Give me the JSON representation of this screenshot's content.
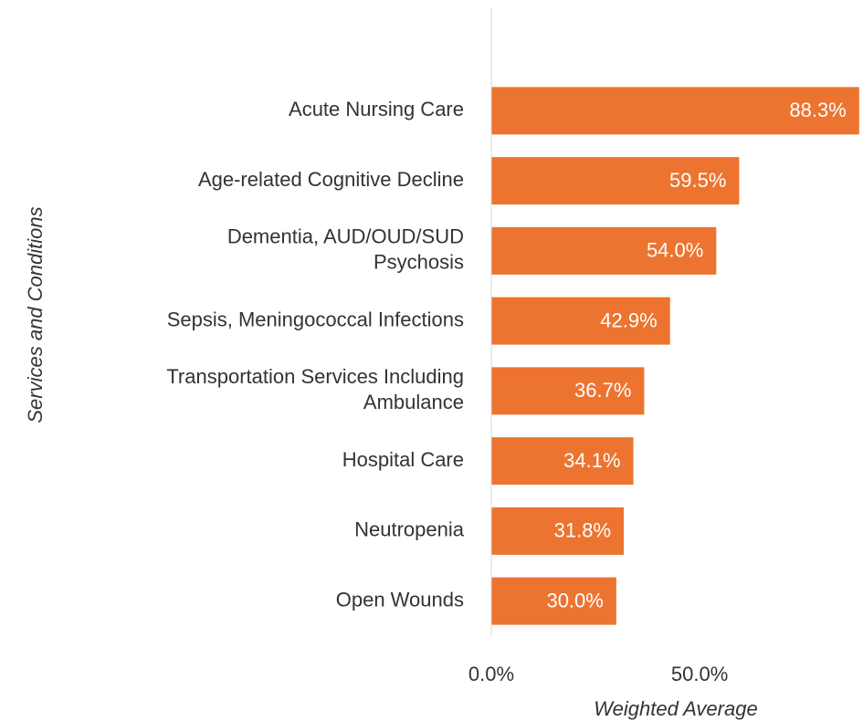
{
  "chart_data": {
    "type": "bar",
    "orientation": "horizontal",
    "x_label": "Weighted Average",
    "y_label": "Services and Conditions",
    "categories": [
      [
        "Acute Nursing Care"
      ],
      [
        "Age-related Cognitive Decline"
      ],
      [
        "Dementia, AUD/OUD/SUD",
        "Psychosis"
      ],
      [
        "Sepsis, Meningococcal Infections"
      ],
      [
        "Transportation Services Including",
        "Ambulance"
      ],
      [
        "Hospital Care"
      ],
      [
        "Neutropenia"
      ],
      [
        "Open Wounds"
      ]
    ],
    "values": [
      88.3,
      59.5,
      54.0,
      42.9,
      36.7,
      34.1,
      31.8,
      30.0
    ],
    "value_labels": [
      "88.3%",
      "59.5%",
      "54.0%",
      "42.9%",
      "36.7%",
      "34.1%",
      "31.8%",
      "30.0%"
    ],
    "color": "#ed7430",
    "xlim": [
      0,
      89
    ],
    "xticks": [
      {
        "value": 0,
        "label": "0.0%"
      },
      {
        "value": 50,
        "label": "50.0%"
      }
    ]
  }
}
